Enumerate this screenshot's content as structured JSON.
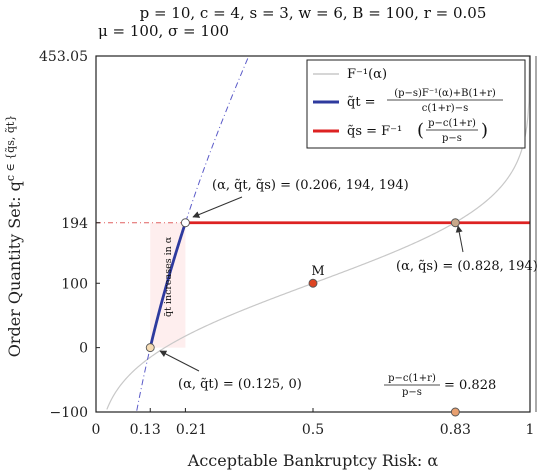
{
  "chart_data": {
    "type": "line",
    "title_line1": "p = 10, c = 4, s = 3, w = 6, B = 100, r = 0.05",
    "title_line2": "μ = 100, σ = 100",
    "xlabel": "Acceptable Bankruptcy Risk: α",
    "ylabel": "Order Quantity Set: q",
    "ylabel_rest": "c ∈ {q̃s, q̃t}",
    "xlim": [
      0,
      1
    ],
    "ylim": [
      -100,
      453.05
    ],
    "x_ticks": [
      {
        "v": 0,
        "label": "0"
      },
      {
        "v": 0.125,
        "label": "0.13"
      },
      {
        "v": 0.206,
        "label": "0.21"
      },
      {
        "v": 0.5,
        "label": "0.5"
      },
      {
        "v": 0.828,
        "label": "0.83"
      },
      {
        "v": 1,
        "label": "1"
      }
    ],
    "y_ticks": [
      {
        "v": -100,
        "label": "−100"
      },
      {
        "v": 0,
        "label": "0"
      },
      {
        "v": 100,
        "label": "100"
      },
      {
        "v": 194,
        "label": "194"
      },
      {
        "v": 453.05,
        "label": "453.05"
      }
    ],
    "grid": false,
    "legend_position": "top-right",
    "legend": [
      {
        "label": "F⁻¹(α)",
        "color": "#c8c8c8"
      },
      {
        "label_lhs": "q̃t =",
        "label_num": "(p−s)F⁻¹(α)+B(1+r)",
        "label_den": "c(1+r)−s",
        "color": "#2e3a9e"
      },
      {
        "label_lhs": "q̃s = F⁻¹",
        "label_num": "p−c(1+r)",
        "label_den": "p−s",
        "color": "#dd2222"
      }
    ],
    "series": [
      {
        "name": "F⁻¹(α)",
        "color": "#c8c8c8",
        "mu": 100,
        "sigma": 100,
        "x_range": [
          0.025,
          1
        ]
      },
      {
        "name": "q̃t",
        "color": "#2e3a9e",
        "x_range": [
          0.125,
          0.206
        ],
        "y_range": [
          0,
          194
        ]
      },
      {
        "name": "q̃s",
        "color": "#dd2222",
        "x_range": [
          0.206,
          1
        ],
        "y": 194
      }
    ],
    "points": [
      {
        "x": 0.125,
        "y": 0,
        "fill": "#f6dcb4",
        "label": "(α, q̃t) = (0.125, 0)"
      },
      {
        "x": 0.206,
        "y": 194,
        "fill": "#ffffff",
        "label": "(α, q̃t, q̃s) = (0.206, 194, 194)"
      },
      {
        "x": 0.828,
        "y": 194,
        "fill": "#c8a88a",
        "label": "(α, q̃s) = (0.828, 194)"
      },
      {
        "x": 0.5,
        "y": 100,
        "fill": "#dd4422",
        "label": "M"
      },
      {
        "x": 0.828,
        "y": -100,
        "fill": "#e8a070",
        "label": "= 0.828",
        "num": "p−c(1+r)",
        "den": "p−s"
      }
    ],
    "annotation_vertical": "q̃t increases in α",
    "ref_line_y": 194
  }
}
